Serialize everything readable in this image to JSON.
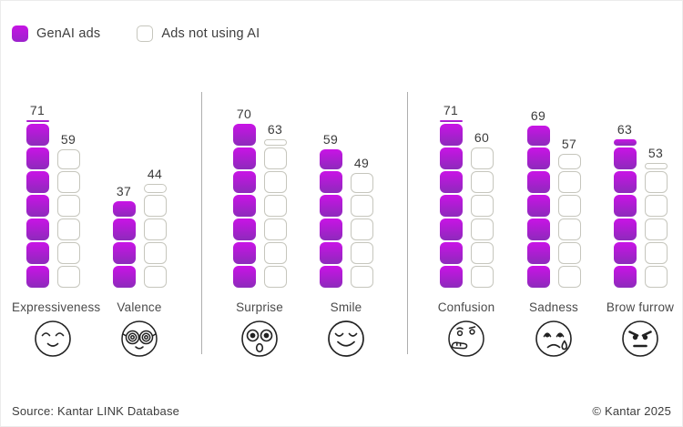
{
  "legend": {
    "genai_label": "GenAI ads",
    "not_ai_label": "Ads not using AI"
  },
  "footer": {
    "source": "Source: Kantar LINK Database",
    "copyright": "© Kantar 2025"
  },
  "colors": {
    "genai_top": "#c913e6",
    "genai_bottom": "#8d2abb",
    "outline_border": "#c6c6bd",
    "divider": "#aeaeae",
    "text": "#3d3d3d"
  },
  "chart_data": {
    "type": "bar",
    "title": "",
    "unit_per_block": 10,
    "value_range": [
      0,
      100
    ],
    "legend_position": "top-left",
    "series_names": [
      "GenAI ads",
      "Ads not using AI"
    ],
    "panels": [
      [
        "Expressiveness",
        "Valence"
      ],
      [
        "Surprise",
        "Smile"
      ],
      [
        "Confusion",
        "Sadness",
        "Brow furrow"
      ]
    ],
    "groups": [
      {
        "label": "Expressiveness",
        "emoji": "relaxed-smile-face",
        "genai": 71,
        "not_ai": 59
      },
      {
        "label": "Valence",
        "emoji": "spiral-glasses-face",
        "genai": 37,
        "not_ai": 44
      },
      {
        "label": "Surprise",
        "emoji": "astonished-face",
        "genai": 70,
        "not_ai": 63
      },
      {
        "label": "Smile",
        "emoji": "smiling-face",
        "genai": 59,
        "not_ai": 49
      },
      {
        "label": "Confusion",
        "emoji": "thinking-face",
        "genai": 71,
        "not_ai": 60
      },
      {
        "label": "Sadness",
        "emoji": "sad-tear-face",
        "genai": 69,
        "not_ai": 57
      },
      {
        "label": "Brow furrow",
        "emoji": "angry-face",
        "genai": 63,
        "not_ai": 53
      }
    ]
  }
}
